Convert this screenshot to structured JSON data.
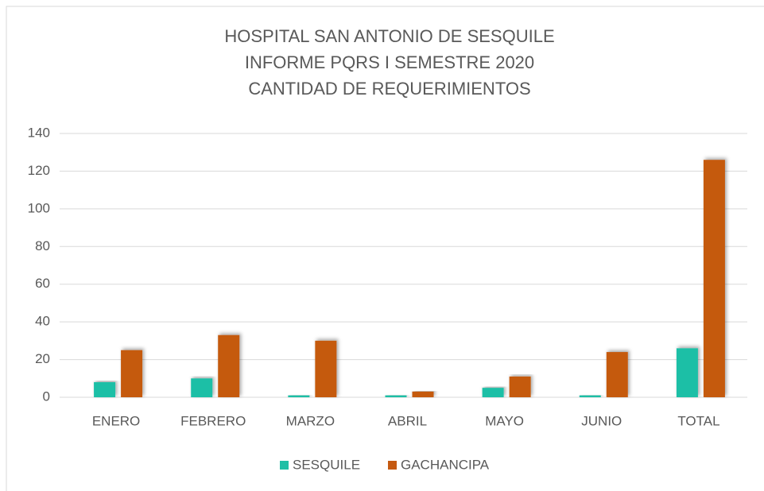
{
  "chart_data": {
    "type": "bar",
    "title": [
      "HOSPITAL SAN ANTONIO DE SESQUILE",
      "INFORME PQRS I SEMESTRE 2020",
      "CANTIDAD DE REQUERIMIENTOS"
    ],
    "categories": [
      "ENERO",
      "FEBRERO",
      "MARZO",
      "ABRIL",
      "MAYO",
      "JUNIO",
      "TOTAL"
    ],
    "series": [
      {
        "name": "SESQUILE",
        "color": "#1fbfa6",
        "values": [
          8,
          10,
          1,
          1,
          5,
          1,
          26
        ]
      },
      {
        "name": "GACHANCIPA",
        "color": "#c55a11",
        "values": [
          25,
          33,
          30,
          3,
          11,
          24,
          126
        ]
      }
    ],
    "ylim": [
      0,
      140
    ],
    "yticks": [
      0,
      20,
      40,
      60,
      80,
      100,
      120,
      140
    ],
    "grid": true,
    "legend": "bottom"
  }
}
